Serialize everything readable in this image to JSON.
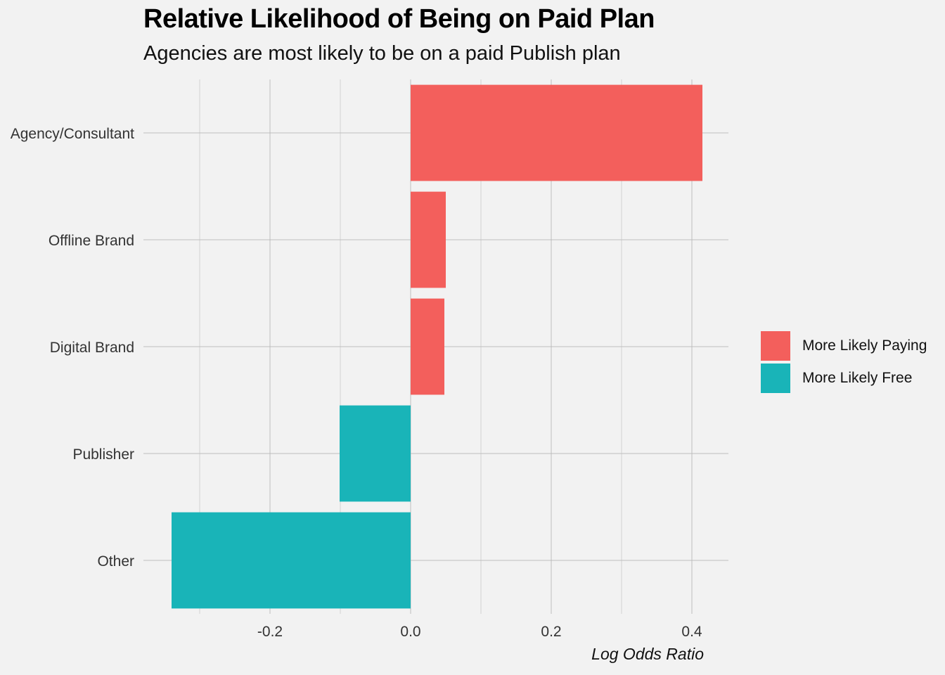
{
  "chart_data": {
    "type": "bar",
    "orientation": "horizontal",
    "title": "Relative Likelihood of Being on Paid Plan",
    "subtitle": "Agencies are most likely to be on a paid Publish plan",
    "xlabel": "Log Odds Ratio",
    "ylabel": "",
    "xlim": [
      -0.34,
      0.45
    ],
    "x_ticks": [
      -0.2,
      0.0,
      0.2,
      0.4
    ],
    "x_tick_labels": [
      "-0.2",
      "0.0",
      "0.2",
      "0.4"
    ],
    "grid": true,
    "legend_position": "right",
    "categories": [
      "Agency/Consultant",
      "Offline Brand",
      "Digital Brand",
      "Publisher",
      "Other"
    ],
    "values": [
      0.415,
      0.05,
      0.048,
      -0.101,
      -0.34
    ],
    "groups": [
      "More Likely Paying",
      "More Likely Paying",
      "More Likely Paying",
      "More Likely Free",
      "More Likely Free"
    ],
    "legend": [
      {
        "label": "More Likely Paying",
        "color": "#f35f5c"
      },
      {
        "label": "More Likely Free",
        "color": "#19b4b8"
      }
    ]
  },
  "colors": {
    "background": "#f2f2f2",
    "grid": "#bdbdbd",
    "paying": "#f35f5c",
    "free": "#19b4b8"
  }
}
